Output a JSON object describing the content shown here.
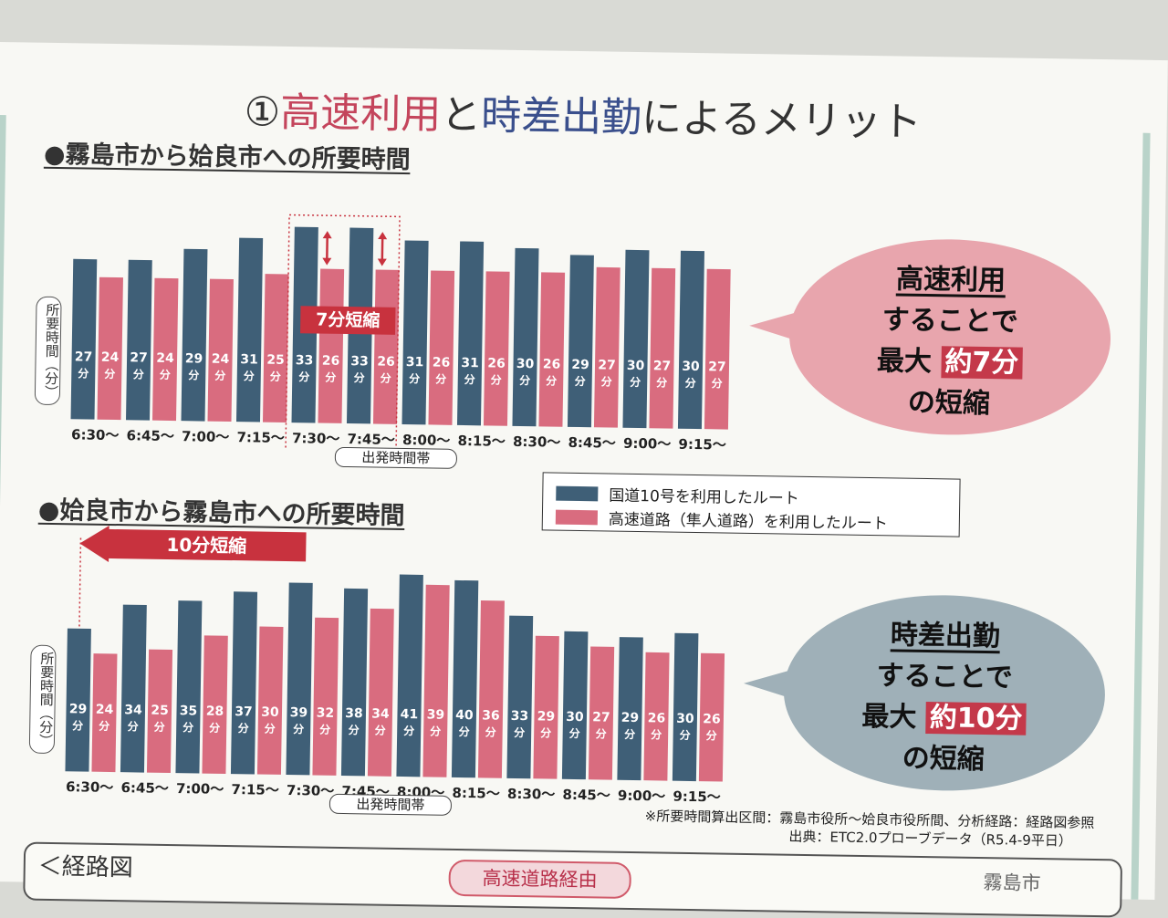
{
  "title": {
    "prefix": "①",
    "part1": "高速利用",
    "mid": "と",
    "part2": "時差出勤",
    "suffix": "によるメリット"
  },
  "colors": {
    "kokudo": "#3f5f77",
    "kosoku": "#d96c7f",
    "accent": "#c8323e",
    "bubble1": "#e8a5ad",
    "bubble2": "#9fb0b8"
  },
  "chart_data": [
    {
      "type": "bar",
      "title": "●霧島市から姶良市への所要時間",
      "ylabel": "所要時間（分）",
      "xlabel": "出発時間帯",
      "categories": [
        "6:30〜",
        "6:45〜",
        "7:00〜",
        "7:15〜",
        "7:30〜",
        "7:45〜",
        "8:00〜",
        "8:15〜",
        "8:30〜",
        "8:45〜",
        "9:00〜",
        "9:15〜"
      ],
      "series": [
        {
          "name": "国道10号を利用したルート",
          "values": [
            27,
            27,
            29,
            31,
            33,
            33,
            31,
            31,
            30,
            29,
            30,
            30
          ]
        },
        {
          "name": "高速道路（隼人道路）を利用したルート",
          "values": [
            24,
            24,
            24,
            25,
            26,
            26,
            26,
            26,
            26,
            27,
            27,
            27
          ]
        }
      ],
      "unit": "分",
      "annotation": "7分短縮"
    },
    {
      "type": "bar",
      "title": "●姶良市から霧島市への所要時間",
      "ylabel": "所要時間（分）",
      "xlabel": "出発時間帯",
      "categories": [
        "6:30〜",
        "6:45〜",
        "7:00〜",
        "7:15〜",
        "7:30〜",
        "7:45〜",
        "8:00〜",
        "8:15〜",
        "8:30〜",
        "8:45〜",
        "9:00〜",
        "9:15〜"
      ],
      "series": [
        {
          "name": "国道10号を利用したルート",
          "values": [
            29,
            34,
            35,
            37,
            39,
            38,
            41,
            40,
            33,
            30,
            29,
            30
          ]
        },
        {
          "name": "高速道路（隼人道路）を利用したルート",
          "values": [
            24,
            25,
            28,
            30,
            32,
            34,
            39,
            36,
            29,
            27,
            26,
            26
          ]
        }
      ],
      "unit": "分",
      "annotation": "10分短縮"
    }
  ],
  "legend": {
    "item1": "国道10号を利用したルート",
    "item2": "高速道路（隼人道路）を利用したルート"
  },
  "bubble1": {
    "line1": "高速利用",
    "line2": "することで",
    "line3a": "最大",
    "line3b": "約7分",
    "line4": "の短縮"
  },
  "bubble2": {
    "line1": "時差出勤",
    "line2": "することで",
    "line3a": "最大",
    "line3b": "約10分",
    "line4": "の短縮"
  },
  "notes": {
    "note1": "※所要時間算出区間：霧島市役所〜姶良市役所間、分析経路：経路図参照",
    "note2": "出典：ETC2.0プローブデータ（R5.4-9平日）"
  },
  "bottom": {
    "label": "＜経路図",
    "pill": "高速道路経由",
    "right": "霧島市"
  }
}
